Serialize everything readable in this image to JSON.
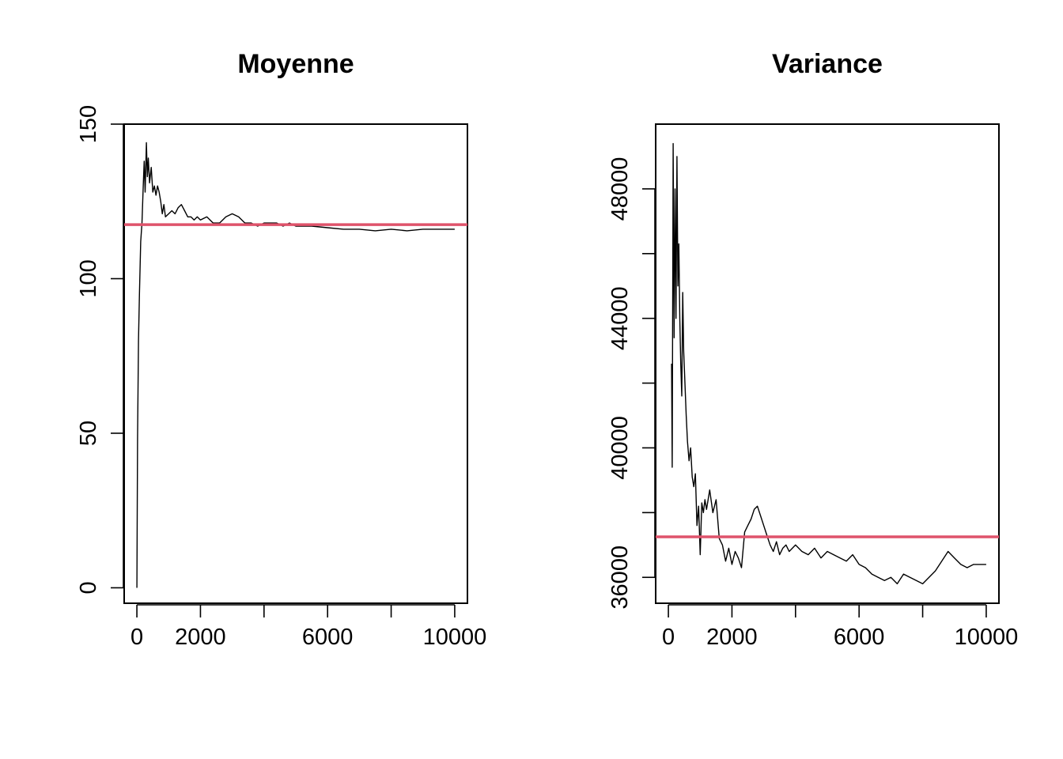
{
  "chart_data": [
    {
      "type": "line",
      "title": "Moyenne",
      "xlabel": "",
      "ylabel": "",
      "xlim": [
        -400,
        10400
      ],
      "ylim": [
        -5,
        150
      ],
      "x_ticks": [
        0,
        2000,
        4000,
        6000,
        8000,
        10000
      ],
      "x_tick_labels": [
        "0",
        "2000",
        "",
        "6000",
        "",
        "10000"
      ],
      "y_ticks": [
        0,
        50,
        100,
        150
      ],
      "y_tick_labels": [
        "0",
        "50",
        "100",
        "150"
      ],
      "grid": false,
      "hline": {
        "y": 117.5,
        "color": "#DF536B"
      },
      "series": [
        {
          "color": "#000000",
          "x": [
            1,
            20,
            50,
            80,
            120,
            160,
            200,
            230,
            260,
            300,
            330,
            360,
            400,
            450,
            500,
            550,
            600,
            650,
            700,
            750,
            800,
            850,
            900,
            1000,
            1100,
            1200,
            1300,
            1400,
            1500,
            1600,
            1700,
            1800,
            1900,
            2000,
            2200,
            2400,
            2600,
            2800,
            3000,
            3200,
            3400,
            3600,
            3800,
            4000,
            4200,
            4400,
            4600,
            4800,
            5000,
            5500,
            6000,
            6500,
            7000,
            7500,
            8000,
            8500,
            9000,
            9500,
            10000
          ],
          "y": [
            0,
            48,
            80,
            95,
            112,
            118,
            130,
            138,
            128,
            144,
            133,
            139,
            131,
            136,
            128,
            130,
            127,
            130,
            128,
            125,
            121,
            124,
            120,
            121,
            122,
            121,
            123,
            124,
            122,
            120,
            120,
            119,
            120,
            119,
            120,
            118,
            118,
            120,
            121,
            120,
            118,
            118,
            117,
            118,
            118,
            118,
            117,
            118,
            117,
            117,
            116.5,
            116,
            116,
            115.5,
            116,
            115.5,
            116,
            116,
            116
          ]
        }
      ]
    },
    {
      "type": "line",
      "title": "Variance",
      "xlabel": "",
      "ylabel": "",
      "xlim": [
        -400,
        10400
      ],
      "ylim": [
        35200,
        50000
      ],
      "x_ticks": [
        0,
        2000,
        4000,
        6000,
        8000,
        10000
      ],
      "x_tick_labels": [
        "0",
        "2000",
        "",
        "6000",
        "",
        "10000"
      ],
      "y_ticks": [
        36000,
        38000,
        40000,
        42000,
        44000,
        46000,
        48000
      ],
      "y_tick_labels": [
        "36000",
        "",
        "40000",
        "",
        "44000",
        "",
        "48000"
      ],
      "grid": false,
      "hline": {
        "y": 37250,
        "color": "#DF536B"
      },
      "series": [
        {
          "color": "#000000",
          "x": [
            100,
            120,
            150,
            180,
            210,
            240,
            270,
            300,
            330,
            360,
            390,
            420,
            450,
            480,
            520,
            560,
            600,
            650,
            700,
            750,
            800,
            850,
            900,
            950,
            1000,
            1050,
            1100,
            1150,
            1200,
            1300,
            1400,
            1500,
            1600,
            1700,
            1800,
            1900,
            2000,
            2100,
            2200,
            2300,
            2400,
            2500,
            2600,
            2700,
            2800,
            2900,
            3000,
            3100,
            3200,
            3300,
            3400,
            3500,
            3600,
            3700,
            3800,
            4000,
            4200,
            4400,
            4600,
            4800,
            5000,
            5200,
            5400,
            5600,
            5800,
            6000,
            6200,
            6400,
            6600,
            6800,
            7000,
            7200,
            7400,
            7600,
            7800,
            8000,
            8200,
            8400,
            8600,
            8800,
            9000,
            9200,
            9400,
            9600,
            9800,
            10000
          ],
          "y": [
            42600,
            39400,
            49400,
            43400,
            48000,
            44000,
            49000,
            45000,
            46300,
            44000,
            42600,
            41600,
            44800,
            43000,
            42000,
            41000,
            40200,
            39600,
            40000,
            39100,
            38800,
            39200,
            37600,
            38200,
            36700,
            38300,
            38000,
            38400,
            38100,
            38700,
            38000,
            38400,
            37200,
            37000,
            36500,
            36900,
            36400,
            36800,
            36600,
            36300,
            37400,
            37600,
            37800,
            38100,
            38200,
            37900,
            37600,
            37300,
            37000,
            36800,
            37100,
            36700,
            36900,
            37000,
            36800,
            37000,
            36800,
            36700,
            36900,
            36600,
            36800,
            36700,
            36600,
            36500,
            36700,
            36400,
            36300,
            36100,
            36000,
            35900,
            36000,
            35800,
            36100,
            36000,
            35900,
            35800,
            36000,
            36200,
            36500,
            36800,
            36600,
            36400,
            36300,
            36400,
            36400,
            36400
          ]
        }
      ]
    }
  ]
}
